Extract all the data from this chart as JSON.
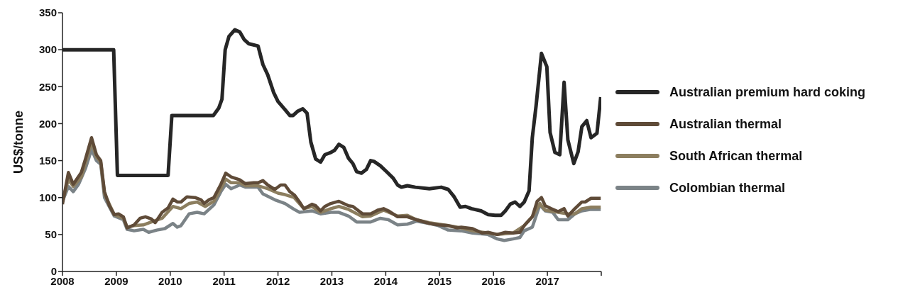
{
  "chart_data": {
    "type": "line",
    "ylabel": "US$/tonne",
    "xlim": [
      2008,
      2018
    ],
    "xticks": [
      2008,
      2009,
      2010,
      2011,
      2012,
      2013,
      2014,
      2015,
      2016,
      2017,
      {
        "value": 2018,
        "label": null
      }
    ],
    "ylim": [
      0,
      350
    ],
    "yticks": [
      0,
      50,
      100,
      150,
      200,
      250,
      300,
      350
    ],
    "legend": "right",
    "marker": "none",
    "line_style": "solid",
    "series": [
      {
        "name": "Australian premium hard coking",
        "color": "#262626",
        "x": [
          2008.0,
          2008.95,
          2009.02,
          2009.96,
          2010.03,
          2010.8,
          2010.9,
          2010.96,
          2011.02,
          2011.09,
          2011.2,
          2011.29,
          2011.37,
          2011.46,
          2011.63,
          2011.72,
          2011.81,
          2011.92,
          2012.0,
          2012.13,
          2012.22,
          2012.28,
          2012.37,
          2012.46,
          2012.54,
          2012.61,
          2012.7,
          2012.79,
          2012.87,
          2012.98,
          2013.05,
          2013.13,
          2013.22,
          2013.31,
          2013.39,
          2013.46,
          2013.55,
          2013.64,
          2013.72,
          2013.78,
          2013.9,
          2014.03,
          2014.14,
          2014.22,
          2014.29,
          2014.4,
          2014.55,
          2014.81,
          2015.03,
          2015.16,
          2015.27,
          2015.38,
          2015.48,
          2015.59,
          2015.77,
          2015.9,
          2016.03,
          2016.14,
          2016.22,
          2016.31,
          2016.4,
          2016.49,
          2016.57,
          2016.66,
          2016.72,
          2016.79,
          2016.89,
          2016.99,
          2017.05,
          2017.14,
          2017.23,
          2017.31,
          2017.38,
          2017.49,
          2017.57,
          2017.64,
          2017.73,
          2017.81,
          2017.92,
          2017.99
        ],
        "values": [
          300,
          300,
          130,
          130,
          211,
          211,
          221,
          233,
          300,
          318,
          327,
          324,
          314,
          308,
          305,
          280,
          266,
          242,
          230,
          219,
          211,
          211,
          217,
          220,
          214,
          175,
          152,
          148,
          158,
          161,
          164,
          172,
          168,
          153,
          146,
          135,
          133,
          138,
          150,
          149,
          143,
          134,
          126,
          117,
          114,
          116,
          114,
          112,
          114,
          111,
          101,
          87,
          88,
          85,
          82,
          77,
          76,
          76,
          82,
          91,
          94,
          88,
          94,
          109,
          181,
          224,
          295,
          277,
          188,
          161,
          158,
          256,
          178,
          146,
          162,
          196,
          204,
          181,
          187,
          236
        ]
      },
      {
        "name": "Australian thermal",
        "color": "#5f4b38",
        "x": [
          2008.0,
          2008.11,
          2008.2,
          2008.35,
          2008.43,
          2008.54,
          2008.63,
          2008.71,
          2008.78,
          2008.87,
          2008.96,
          2009.04,
          2009.13,
          2009.2,
          2009.33,
          2009.44,
          2009.54,
          2009.65,
          2009.72,
          2009.85,
          2009.96,
          2010.05,
          2010.13,
          2010.2,
          2010.31,
          2010.46,
          2010.57,
          2010.63,
          2010.72,
          2010.81,
          2010.94,
          2011.03,
          2011.13,
          2011.29,
          2011.39,
          2011.55,
          2011.63,
          2011.72,
          2011.81,
          2011.94,
          2012.05,
          2012.13,
          2012.22,
          2012.31,
          2012.4,
          2012.48,
          2012.63,
          2012.7,
          2012.79,
          2012.87,
          2012.98,
          2013.13,
          2013.31,
          2013.39,
          2013.57,
          2013.72,
          2013.85,
          2013.96,
          2014.05,
          2014.22,
          2014.4,
          2014.57,
          2014.81,
          2014.98,
          2015.16,
          2015.33,
          2015.4,
          2015.61,
          2015.79,
          2015.9,
          2016.07,
          2016.22,
          2016.36,
          2016.49,
          2016.57,
          2016.72,
          2016.81,
          2016.89,
          2016.96,
          2017.07,
          2017.2,
          2017.31,
          2017.38,
          2017.51,
          2017.64,
          2017.7,
          2017.81,
          2017.99
        ],
        "values": [
          91,
          134,
          118,
          134,
          153,
          181,
          158,
          150,
          108,
          89,
          77,
          78,
          74,
          59,
          63,
          72,
          74,
          71,
          66,
          80,
          86,
          98,
          94,
          94,
          101,
          100,
          97,
          92,
          97,
          100,
          118,
          133,
          128,
          124,
          119,
          120,
          120,
          123,
          117,
          111,
          117,
          117,
          108,
          103,
          94,
          85,
          91,
          89,
          82,
          88,
          92,
          95,
          89,
          88,
          78,
          78,
          83,
          85,
          82,
          74,
          74,
          70,
          65,
          63,
          62,
          59,
          60,
          58,
          52,
          53,
          50,
          53,
          52,
          53,
          62,
          74,
          95,
          100,
          89,
          85,
          81,
          85,
          75,
          85,
          94,
          94,
          99,
          99
        ]
      },
      {
        "name": "South African thermal",
        "color": "#8c7e5f",
        "x": [
          2008.0,
          2008.11,
          2008.2,
          2008.35,
          2008.54,
          2008.63,
          2008.71,
          2008.78,
          2008.96,
          2009.13,
          2009.2,
          2009.33,
          2009.5,
          2009.65,
          2009.85,
          2010.05,
          2010.2,
          2010.35,
          2010.5,
          2010.65,
          2010.81,
          2010.94,
          2011.03,
          2011.13,
          2011.29,
          2011.4,
          2011.63,
          2011.81,
          2012.0,
          2012.13,
          2012.3,
          2012.48,
          2012.63,
          2012.79,
          2012.98,
          2013.13,
          2013.31,
          2013.57,
          2013.72,
          2013.96,
          2014.22,
          2014.4,
          2014.57,
          2014.81,
          2015.16,
          2015.4,
          2015.61,
          2015.9,
          2016.07,
          2016.36,
          2016.57,
          2016.72,
          2016.86,
          2016.96,
          2017.2,
          2017.38,
          2017.51,
          2017.64,
          2017.81,
          2017.99
        ],
        "values": [
          95,
          125,
          115,
          128,
          175,
          155,
          148,
          105,
          77,
          72,
          60,
          62,
          63,
          67,
          72,
          88,
          85,
          92,
          94,
          88,
          95,
          112,
          125,
          120,
          120,
          116,
          116,
          112,
          106,
          104,
          100,
          85,
          88,
          80,
          85,
          88,
          84,
          74,
          75,
          83,
          75,
          76,
          70,
          66,
          62,
          59,
          55,
          52,
          50,
          52,
          62,
          74,
          92,
          83,
          80,
          78,
          78,
          85,
          87,
          87
        ]
      },
      {
        "name": "Colombian thermal",
        "color": "#7b8387",
        "x": [
          2008.0,
          2008.11,
          2008.2,
          2008.3,
          2008.43,
          2008.54,
          2008.63,
          2008.71,
          2008.78,
          2008.96,
          2009.13,
          2009.2,
          2009.33,
          2009.5,
          2009.6,
          2009.75,
          2009.9,
          2010.05,
          2010.13,
          2010.2,
          2010.35,
          2010.5,
          2010.63,
          2010.81,
          2010.94,
          2011.03,
          2011.13,
          2011.29,
          2011.4,
          2011.63,
          2011.72,
          2011.94,
          2012.13,
          2012.3,
          2012.4,
          2012.63,
          2012.79,
          2012.98,
          2013.13,
          2013.31,
          2013.46,
          2013.72,
          2013.9,
          2014.05,
          2014.22,
          2014.4,
          2014.57,
          2014.81,
          2014.98,
          2015.16,
          2015.4,
          2015.61,
          2015.9,
          2016.07,
          2016.2,
          2016.36,
          2016.49,
          2016.57,
          2016.72,
          2016.86,
          2016.96,
          2017.1,
          2017.2,
          2017.38,
          2017.51,
          2017.64,
          2017.81,
          2017.99
        ],
        "values": [
          95,
          115,
          108,
          118,
          140,
          165,
          150,
          145,
          100,
          75,
          70,
          57,
          55,
          57,
          53,
          56,
          58,
          65,
          60,
          62,
          78,
          80,
          78,
          90,
          108,
          118,
          112,
          117,
          114,
          114,
          105,
          97,
          92,
          84,
          80,
          82,
          78,
          80,
          80,
          75,
          67,
          67,
          72,
          70,
          63,
          64,
          68,
          65,
          62,
          56,
          55,
          52,
          50,
          44,
          42,
          44,
          46,
          55,
          60,
          90,
          82,
          80,
          70,
          70,
          78,
          82,
          84,
          84
        ]
      }
    ]
  }
}
